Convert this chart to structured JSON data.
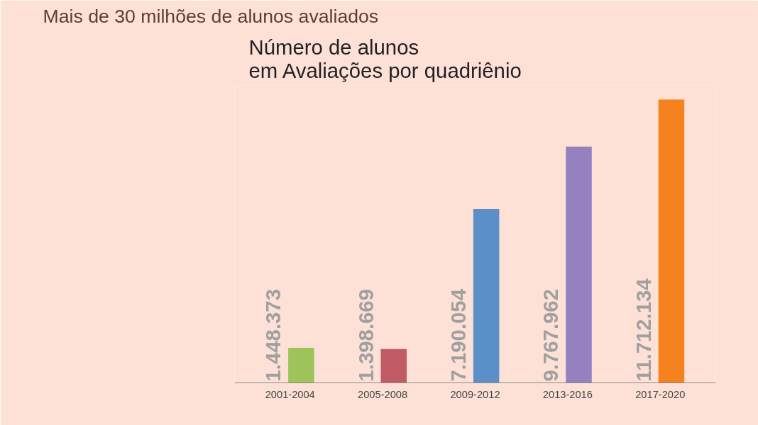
{
  "chart_data": {
    "type": "bar",
    "title": "Mais de 30 milhões de alunos avaliados",
    "subtitle": "Número de alunos\nem Avaliações por quadriênio",
    "categories": [
      "2001-2004",
      "2005-2008",
      "2009-2012",
      "2013-2016",
      "2017-2020"
    ],
    "values": [
      1448373,
      1398669,
      7190054,
      9767962,
      11712134
    ],
    "value_labels": [
      "1.448.373",
      "1.398.669",
      "7.190.054",
      "9.767.962",
      "11.712.134"
    ],
    "colors": [
      "#9dc35a",
      "#c05a64",
      "#5b8fc8",
      "#9580c0",
      "#f5821f"
    ]
  }
}
